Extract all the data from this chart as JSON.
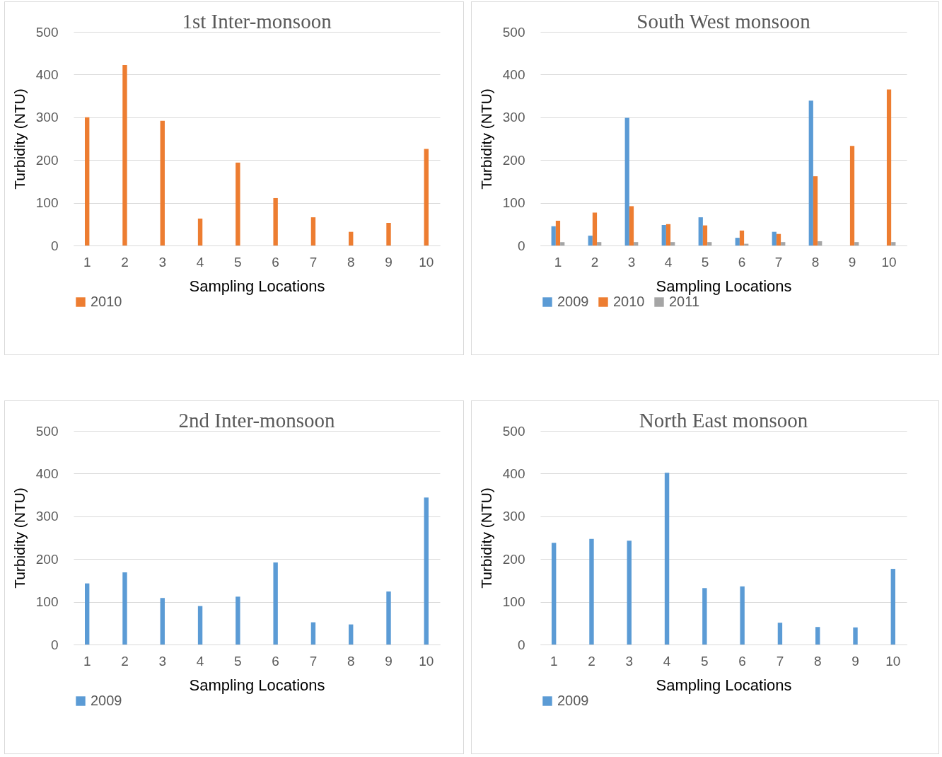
{
  "chart_data": [
    {
      "type": "bar",
      "title": "1st Inter-monsoon",
      "xlabel": "Sampling Locations",
      "ylabel": "Turbidity (NTU)",
      "categories": [
        "1",
        "2",
        "3",
        "4",
        "5",
        "6",
        "7",
        "8",
        "9",
        "10"
      ],
      "series": [
        {
          "name": "2010",
          "color": "#ed7d31",
          "values": [
            300,
            422,
            292,
            63,
            194,
            111,
            66,
            32,
            53,
            226
          ]
        }
      ],
      "ylim": [
        0,
        500
      ],
      "yticks": [
        0,
        100,
        200,
        300,
        400,
        500
      ],
      "grid": "y",
      "legend": "bottom"
    },
    {
      "type": "bar",
      "title": "South West monsoon",
      "xlabel": "Sampling Locations",
      "ylabel": "Turbidity (NTU)",
      "categories": [
        "1",
        "2",
        "3",
        "4",
        "5",
        "6",
        "7",
        "8",
        "9",
        "10"
      ],
      "series": [
        {
          "name": "2009",
          "color": "#5b9bd5",
          "values": [
            45,
            23,
            299,
            48,
            66,
            18,
            32,
            339,
            null,
            null
          ]
        },
        {
          "name": "2010",
          "color": "#ed7d31",
          "values": [
            58,
            77,
            92,
            50,
            47,
            35,
            27,
            162,
            233,
            365
          ]
        },
        {
          "name": "2011",
          "color": "#a5a5a5",
          "values": [
            8,
            8,
            8,
            8,
            8,
            4,
            8,
            10,
            8,
            8
          ]
        }
      ],
      "ylim": [
        0,
        500
      ],
      "yticks": [
        0,
        100,
        200,
        300,
        400,
        500
      ],
      "grid": "y",
      "legend": "bottom"
    },
    {
      "type": "bar",
      "title": "2nd Inter-monsoon",
      "xlabel": "Sampling Locations",
      "ylabel": "Turbidity (NTU)",
      "categories": [
        "1",
        "2",
        "3",
        "4",
        "5",
        "6",
        "7",
        "8",
        "9",
        "10"
      ],
      "series": [
        {
          "name": "2009",
          "color": "#5b9bd5",
          "values": [
            143,
            169,
            109,
            90,
            112,
            192,
            52,
            47,
            124,
            344
          ]
        }
      ],
      "ylim": [
        0,
        500
      ],
      "yticks": [
        0,
        100,
        200,
        300,
        400,
        500
      ],
      "grid": "y",
      "legend": "bottom"
    },
    {
      "type": "bar",
      "title": "North East monsoon",
      "xlabel": "Sampling Locations",
      "ylabel": "Turbidity (NTU)",
      "categories": [
        "1",
        "2",
        "3",
        "4",
        "5",
        "6",
        "7",
        "8",
        "9",
        "10"
      ],
      "series": [
        {
          "name": "2009",
          "color": "#5b9bd5",
          "values": [
            238,
            247,
            243,
            402,
            132,
            136,
            51,
            41,
            40,
            177
          ]
        }
      ],
      "ylim": [
        0,
        500
      ],
      "yticks": [
        0,
        100,
        200,
        300,
        400,
        500
      ],
      "grid": "y",
      "legend": "bottom"
    }
  ]
}
